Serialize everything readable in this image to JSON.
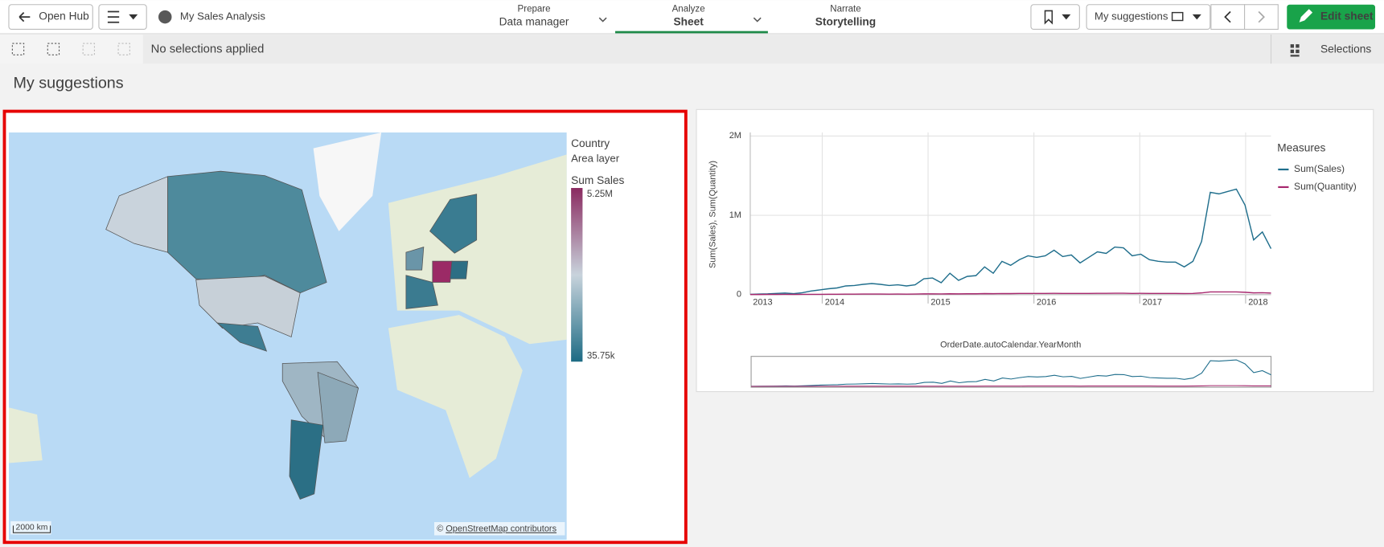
{
  "toolbar": {
    "back_button": "Open Hub",
    "app_name": "My Sales Analysis",
    "tabs": [
      {
        "top": "Prepare",
        "bottom": "Data manager"
      },
      {
        "top": "Analyze",
        "bottom": "Sheet"
      },
      {
        "top": "Narrate",
        "bottom": "Storytelling"
      }
    ],
    "sheet_selector": "My suggestions",
    "edit_button": "Edit sheet"
  },
  "selections_bar": {
    "status": "No selections applied",
    "selections_button": "Selections"
  },
  "sheet_title": "My suggestions",
  "map": {
    "legend_title": "Country",
    "legend_subtitle": "Area layer",
    "measure": "Sum Sales",
    "legend_max": {
      "value": 5250000,
      "label": "5.25M"
    },
    "legend_min": {
      "value": 35750,
      "label": "35.75k"
    },
    "scale_bar": "2000 km",
    "attribution_prefix": "©",
    "attribution_link": "OpenStreetMap contributors"
  },
  "chart_data": {
    "type": "line",
    "y_label": "Sum(Sales), Sum(Quantity)",
    "x_label": "OrderDate.autoCalendar.YearMonth",
    "legend_title": "Measures",
    "ylim": [
      0,
      2000000
    ],
    "yticks": [
      0,
      {
        "value": 1000000,
        "label": "1M"
      },
      {
        "value": 2000000,
        "label": "2M"
      }
    ],
    "xlim": [
      2013.32,
      2018.24
    ],
    "xticks": [
      2013,
      2014,
      2015,
      2016,
      2017,
      2018
    ],
    "grid": true,
    "series": [
      {
        "name": "Sum(Sales)",
        "color": "#1f6e8c",
        "values": [
          5000,
          8000,
          10000,
          15000,
          20000,
          12000,
          25000,
          45000,
          60000,
          75000,
          85000,
          110000,
          115000,
          130000,
          140000,
          130000,
          115000,
          125000,
          110000,
          125000,
          200000,
          210000,
          150000,
          270000,
          180000,
          230000,
          240000,
          350000,
          270000,
          420000,
          370000,
          440000,
          490000,
          470000,
          490000,
          560000,
          480000,
          500000,
          400000,
          470000,
          540000,
          520000,
          600000,
          590000,
          490000,
          510000,
          440000,
          420000,
          410000,
          410000,
          350000,
          420000,
          670000,
          1290000,
          1270000,
          1300000,
          1330000,
          1130000,
          690000,
          790000,
          580000
        ]
      },
      {
        "name": "Sum(Quantity)",
        "color": "#a7286e",
        "values": [
          2000,
          2000,
          3000,
          3000,
          4000,
          3000,
          4000,
          5000,
          5000,
          6000,
          6000,
          7000,
          7000,
          8000,
          8000,
          8000,
          7000,
          8000,
          7000,
          8000,
          10000,
          10000,
          9000,
          11000,
          10000,
          11000,
          11000,
          13000,
          12000,
          14000,
          13000,
          15000,
          16000,
          16000,
          16000,
          17000,
          16000,
          16000,
          15000,
          16000,
          17000,
          17000,
          18000,
          18000,
          16000,
          17000,
          16000,
          15000,
          15000,
          15000,
          14000,
          16000,
          22000,
          35000,
          34000,
          34000,
          35000,
          30000,
          22000,
          24000,
          20000
        ]
      }
    ]
  }
}
